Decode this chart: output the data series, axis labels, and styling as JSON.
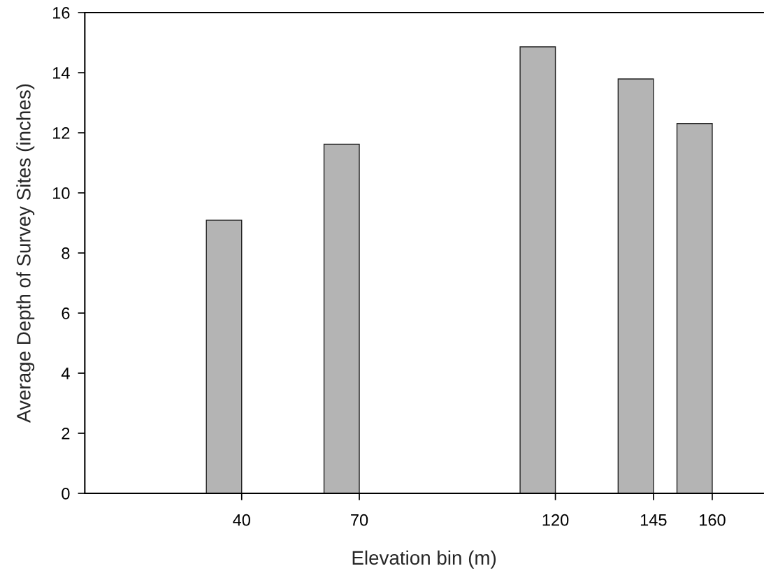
{
  "chart_data": {
    "type": "bar",
    "xlabel": "Elevation bin (m)",
    "ylabel": "Average Depth of Survey Sites (inches)",
    "x": [
      35.5,
      65.5,
      115.5,
      140.5,
      155.5
    ],
    "values": [
      9.09,
      11.62,
      14.86,
      13.79,
      12.31
    ],
    "color": "#b4b4b4",
    "xlim": [
      0,
      173
    ],
    "xticks": [
      40,
      70,
      120,
      145,
      160
    ],
    "ylim": [
      0,
      16
    ],
    "yticks": [
      0,
      2,
      4,
      6,
      8,
      10,
      12,
      14,
      16
    ],
    "grid": false
  }
}
